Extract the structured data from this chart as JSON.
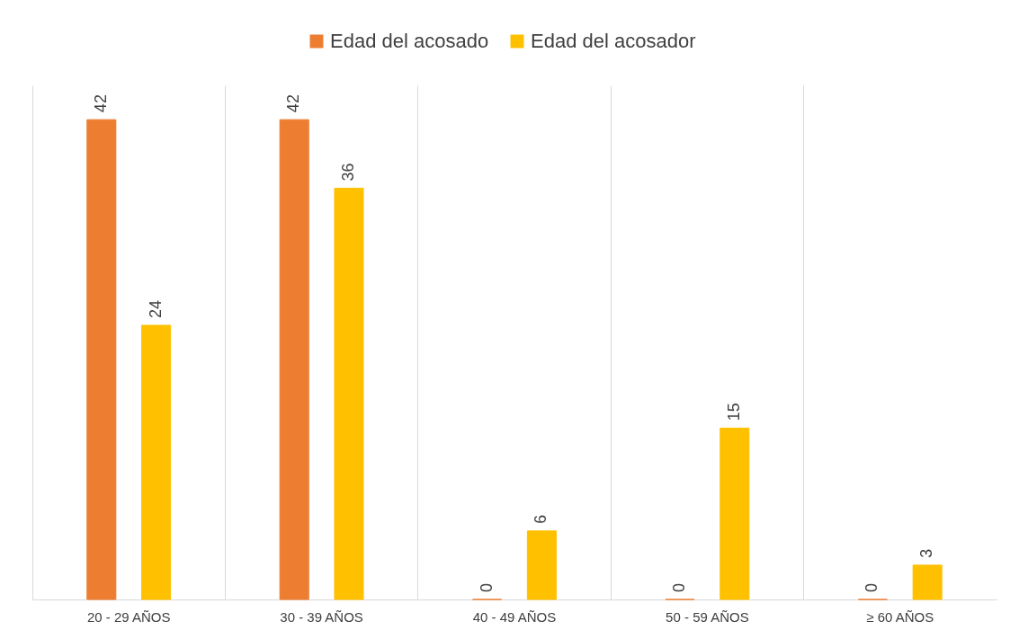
{
  "chart_data": {
    "type": "bar",
    "categories": [
      "20 - 29 AÑOS",
      "30 - 39 AÑOS",
      "40 - 49 AÑOS",
      "50 - 59 AÑOS",
      "≥ 60 AÑOS"
    ],
    "series": [
      {
        "name": "Edad del acosado",
        "color": "#ed7d31",
        "values": [
          42,
          42,
          0,
          0,
          0
        ]
      },
      {
        "name": "Edad del acosador",
        "color": "#ffc000",
        "values": [
          24,
          36,
          6,
          15,
          3
        ]
      }
    ],
    "data_labels": true,
    "grid": "x",
    "legend": "top"
  }
}
